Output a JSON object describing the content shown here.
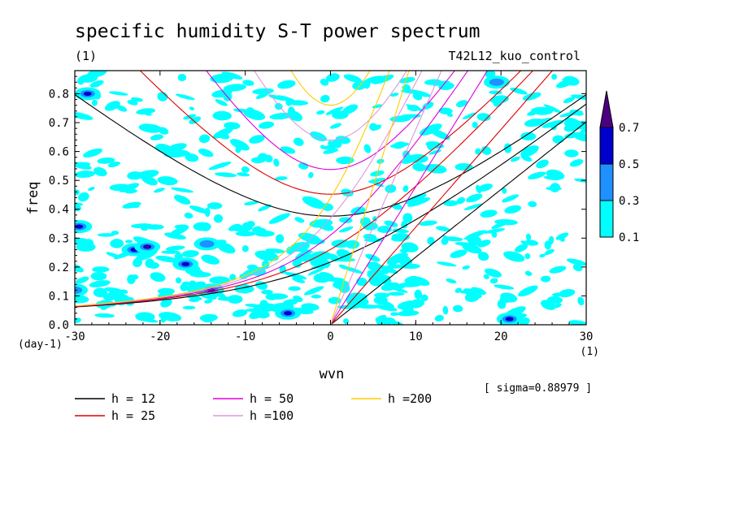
{
  "chart_data": {
    "type": "contour",
    "title": "specific humidity S-T power spectrum",
    "subtitle_left": "(1)",
    "subtitle_right": "T42L12_kuo_control",
    "xlabel": "wvn",
    "ylabel": "freq",
    "x_unit_label": "(1)",
    "y_unit_label": "(day-1)",
    "xlim": [
      -30,
      30
    ],
    "ylim": [
      0,
      0.88
    ],
    "x_ticks": [
      -30,
      -20,
      -10,
      0,
      10,
      20,
      30
    ],
    "y_ticks": [
      0.0,
      0.1,
      0.2,
      0.3,
      0.4,
      0.5,
      0.6,
      0.7,
      0.8
    ],
    "x_tick_labels": [
      "-30",
      "-20",
      "-10",
      "0",
      "10",
      "20",
      "30"
    ],
    "y_tick_labels": [
      "0.0",
      "0.1",
      "0.2",
      "0.3",
      "0.4",
      "0.5",
      "0.6",
      "0.7",
      "0.8"
    ],
    "sigma_text": "[ sigma=0.88979 ]",
    "contour_levels": [
      0.1,
      0.3,
      0.5,
      0.7
    ],
    "colorbar_labels": [
      "0.1",
      "0.3",
      "0.5",
      "0.7"
    ],
    "colorbar_colors": [
      "#00ffff",
      "#1e90ff",
      "#0000cd",
      "#4b0082"
    ],
    "dispersion_curves": [
      {
        "name": "h = 12",
        "h": 12,
        "color": "#000000"
      },
      {
        "name": "h = 25",
        "h": 25,
        "color": "#dd0000"
      },
      {
        "name": "h = 50",
        "h": 50,
        "color": "#dd00dd"
      },
      {
        "name": "h =100",
        "h": 100,
        "color": "#dd99dd"
      },
      {
        "name": "h =200",
        "h": 200,
        "color": "#ffcc00"
      }
    ],
    "high_power_spots": [
      {
        "wvn": -28.5,
        "freq": 0.8,
        "level": 0.5
      },
      {
        "wvn": -23,
        "freq": 0.26,
        "level": 0.5
      },
      {
        "wvn": -21.5,
        "freq": 0.27,
        "level": 0.7
      },
      {
        "wvn": -17,
        "freq": 0.21,
        "level": 0.5
      },
      {
        "wvn": -14,
        "freq": 0.12,
        "level": 0.5
      },
      {
        "wvn": -5,
        "freq": 0.04,
        "level": 0.5
      },
      {
        "wvn": 21,
        "freq": 0.02,
        "level": 0.5
      },
      {
        "wvn": -29.5,
        "freq": 0.34,
        "level": 0.5
      },
      {
        "wvn": -14.5,
        "freq": 0.28,
        "level": 0.3
      },
      {
        "wvn": -30,
        "freq": 0.12,
        "level": 0.3
      },
      {
        "wvn": 19.5,
        "freq": 0.84,
        "level": 0.3
      }
    ]
  }
}
